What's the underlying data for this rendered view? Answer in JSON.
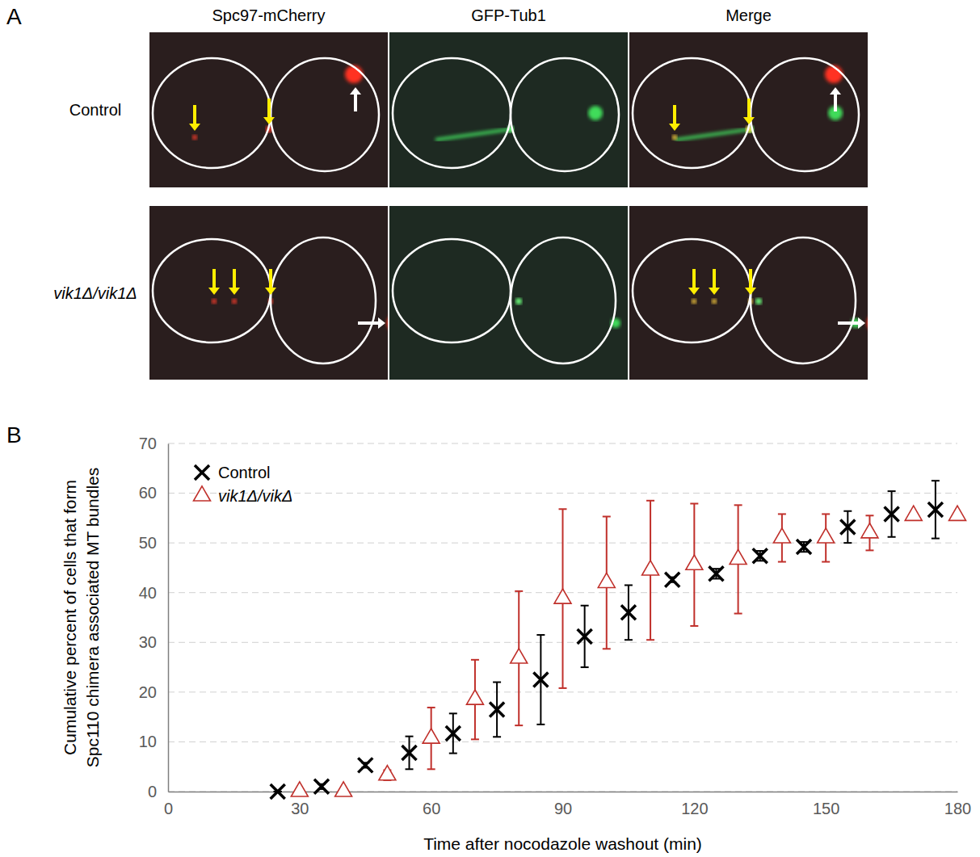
{
  "figure": {
    "panel_letters": [
      "A",
      "B"
    ],
    "image_panel": {
      "columns": [
        "Spc97-mCherry",
        "GFP-Tub1",
        "Merge"
      ],
      "rows": [
        "Control",
        "vik1Δ/vik1Δ"
      ]
    }
  },
  "chart_data": {
    "type": "scatter",
    "xlabel": "Time after nocodazole washout (min)",
    "ylabel": "Cumulative percent of cells that form Spc110 chimera associated MT bundles",
    "xlim": [
      0,
      180
    ],
    "xticks": [
      0,
      30,
      60,
      90,
      120,
      150,
      180
    ],
    "ylim": [
      0,
      70
    ],
    "yticks": [
      0,
      10,
      20,
      30,
      40,
      50,
      60,
      70
    ],
    "grid": true,
    "legend": "top-left",
    "series": [
      {
        "name": "Control",
        "color": "#000000",
        "marker": "x",
        "x": [
          25,
          35,
          45,
          55,
          65,
          75,
          85,
          95,
          105,
          115,
          125,
          135,
          145,
          155,
          165,
          175
        ],
        "values": [
          0,
          1,
          5.3,
          7.8,
          11.7,
          16.5,
          22.5,
          31.2,
          36,
          42.6,
          43.8,
          47.4,
          49.2,
          53.2,
          55.8,
          56.7
        ],
        "errors": [
          0,
          0.5,
          0.5,
          3.3,
          4,
          5.5,
          9,
          6.2,
          5.5,
          0.5,
          1,
          1,
          1,
          3.2,
          4.6,
          5.8
        ]
      },
      {
        "name": "vik1Δ/vikΔ",
        "color": "#c0302b",
        "marker": "triangle",
        "x": [
          30,
          40,
          50,
          60,
          70,
          80,
          90,
          100,
          110,
          120,
          130,
          140,
          150,
          160,
          170,
          180
        ],
        "values": [
          0,
          0,
          3.3,
          10.7,
          18.5,
          26.8,
          38.8,
          42,
          44.5,
          45.6,
          46.7,
          51,
          51,
          52,
          55.5,
          55.5
        ],
        "errors": [
          0,
          0,
          1,
          6.2,
          8,
          13.5,
          18,
          13.3,
          14,
          12.3,
          10.9,
          4.8,
          4.8,
          3.5,
          0.5,
          0.5
        ]
      }
    ]
  }
}
